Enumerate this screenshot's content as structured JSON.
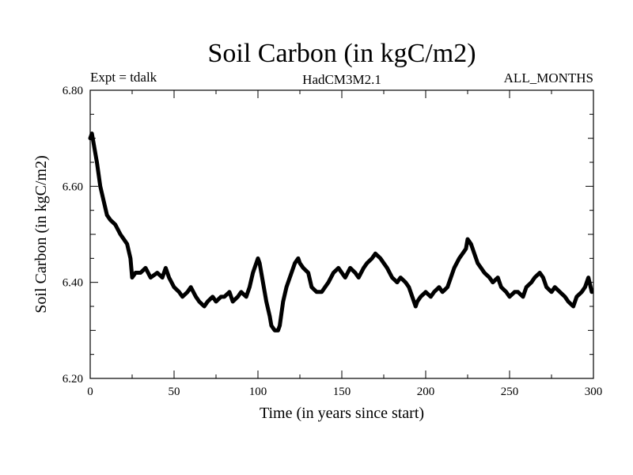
{
  "chart_data": {
    "type": "line",
    "title": "Soil Carbon (in kgC/m2)",
    "header_left": "Expt = tdalk",
    "header_center": "HadCM3M2.1",
    "header_right": "ALL_MONTHS",
    "xlabel": "Time (in years since start)",
    "ylabel": "Soil Carbon (in kgC/m2)",
    "xlim": [
      0,
      300
    ],
    "ylim": [
      6.2,
      6.8
    ],
    "x_ticks": [
      0,
      50,
      100,
      150,
      200,
      250,
      300
    ],
    "x_tick_labels": [
      "0",
      "50",
      "100",
      "150",
      "200",
      "250",
      "300"
    ],
    "y_ticks": [
      6.2,
      6.4,
      6.6,
      6.8
    ],
    "y_tick_labels": [
      "6.20",
      "6.40",
      "6.60",
      "6.80"
    ],
    "grid": false,
    "line_color": "#000000",
    "series": [
      {
        "x": [
          0,
          1,
          2,
          4,
          6,
          8,
          10,
          12,
          15,
          18,
          20,
          22,
          24,
          25,
          27,
          30,
          33,
          36,
          40,
          43,
          45,
          47,
          50,
          53,
          55,
          58,
          60,
          63,
          65,
          68,
          70,
          73,
          75,
          78,
          80,
          83,
          85,
          88,
          90,
          93,
          95,
          97,
          99,
          100,
          101,
          102,
          104,
          105,
          107,
          108,
          110,
          112,
          113,
          115,
          117,
          119,
          120,
          122,
          124,
          125,
          127,
          130,
          132,
          135,
          138,
          140,
          142,
          145,
          148,
          150,
          152,
          155,
          158,
          160,
          163,
          165,
          168,
          170,
          173,
          175,
          177,
          180,
          183,
          185,
          188,
          190,
          192,
          194,
          195,
          197,
          200,
          203,
          205,
          208,
          210,
          213,
          215,
          217,
          220,
          222,
          224,
          225,
          227,
          229,
          231,
          233,
          235,
          238,
          240,
          243,
          245,
          248,
          250,
          253,
          255,
          258,
          260,
          263,
          265,
          268,
          270,
          272,
          275,
          277,
          280,
          283,
          285,
          288,
          290,
          293,
          295,
          297,
          299
        ],
        "y": [
          6.7,
          6.71,
          6.69,
          6.65,
          6.6,
          6.57,
          6.54,
          6.53,
          6.52,
          6.5,
          6.49,
          6.48,
          6.45,
          6.41,
          6.42,
          6.42,
          6.43,
          6.41,
          6.42,
          6.41,
          6.43,
          6.41,
          6.39,
          6.38,
          6.37,
          6.38,
          6.39,
          6.37,
          6.36,
          6.35,
          6.36,
          6.37,
          6.36,
          6.37,
          6.37,
          6.38,
          6.36,
          6.37,
          6.38,
          6.37,
          6.39,
          6.42,
          6.44,
          6.45,
          6.44,
          6.42,
          6.38,
          6.36,
          6.33,
          6.31,
          6.3,
          6.3,
          6.31,
          6.36,
          6.39,
          6.41,
          6.42,
          6.44,
          6.45,
          6.44,
          6.43,
          6.42,
          6.39,
          6.38,
          6.38,
          6.39,
          6.4,
          6.42,
          6.43,
          6.42,
          6.41,
          6.43,
          6.42,
          6.41,
          6.43,
          6.44,
          6.45,
          6.46,
          6.45,
          6.44,
          6.43,
          6.41,
          6.4,
          6.41,
          6.4,
          6.39,
          6.37,
          6.35,
          6.36,
          6.37,
          6.38,
          6.37,
          6.38,
          6.39,
          6.38,
          6.39,
          6.41,
          6.43,
          6.45,
          6.46,
          6.47,
          6.49,
          6.48,
          6.46,
          6.44,
          6.43,
          6.42,
          6.41,
          6.4,
          6.41,
          6.39,
          6.38,
          6.37,
          6.38,
          6.38,
          6.37,
          6.39,
          6.4,
          6.41,
          6.42,
          6.41,
          6.39,
          6.38,
          6.39,
          6.38,
          6.37,
          6.36,
          6.35,
          6.37,
          6.38,
          6.39,
          6.41,
          6.38
        ]
      }
    ]
  }
}
